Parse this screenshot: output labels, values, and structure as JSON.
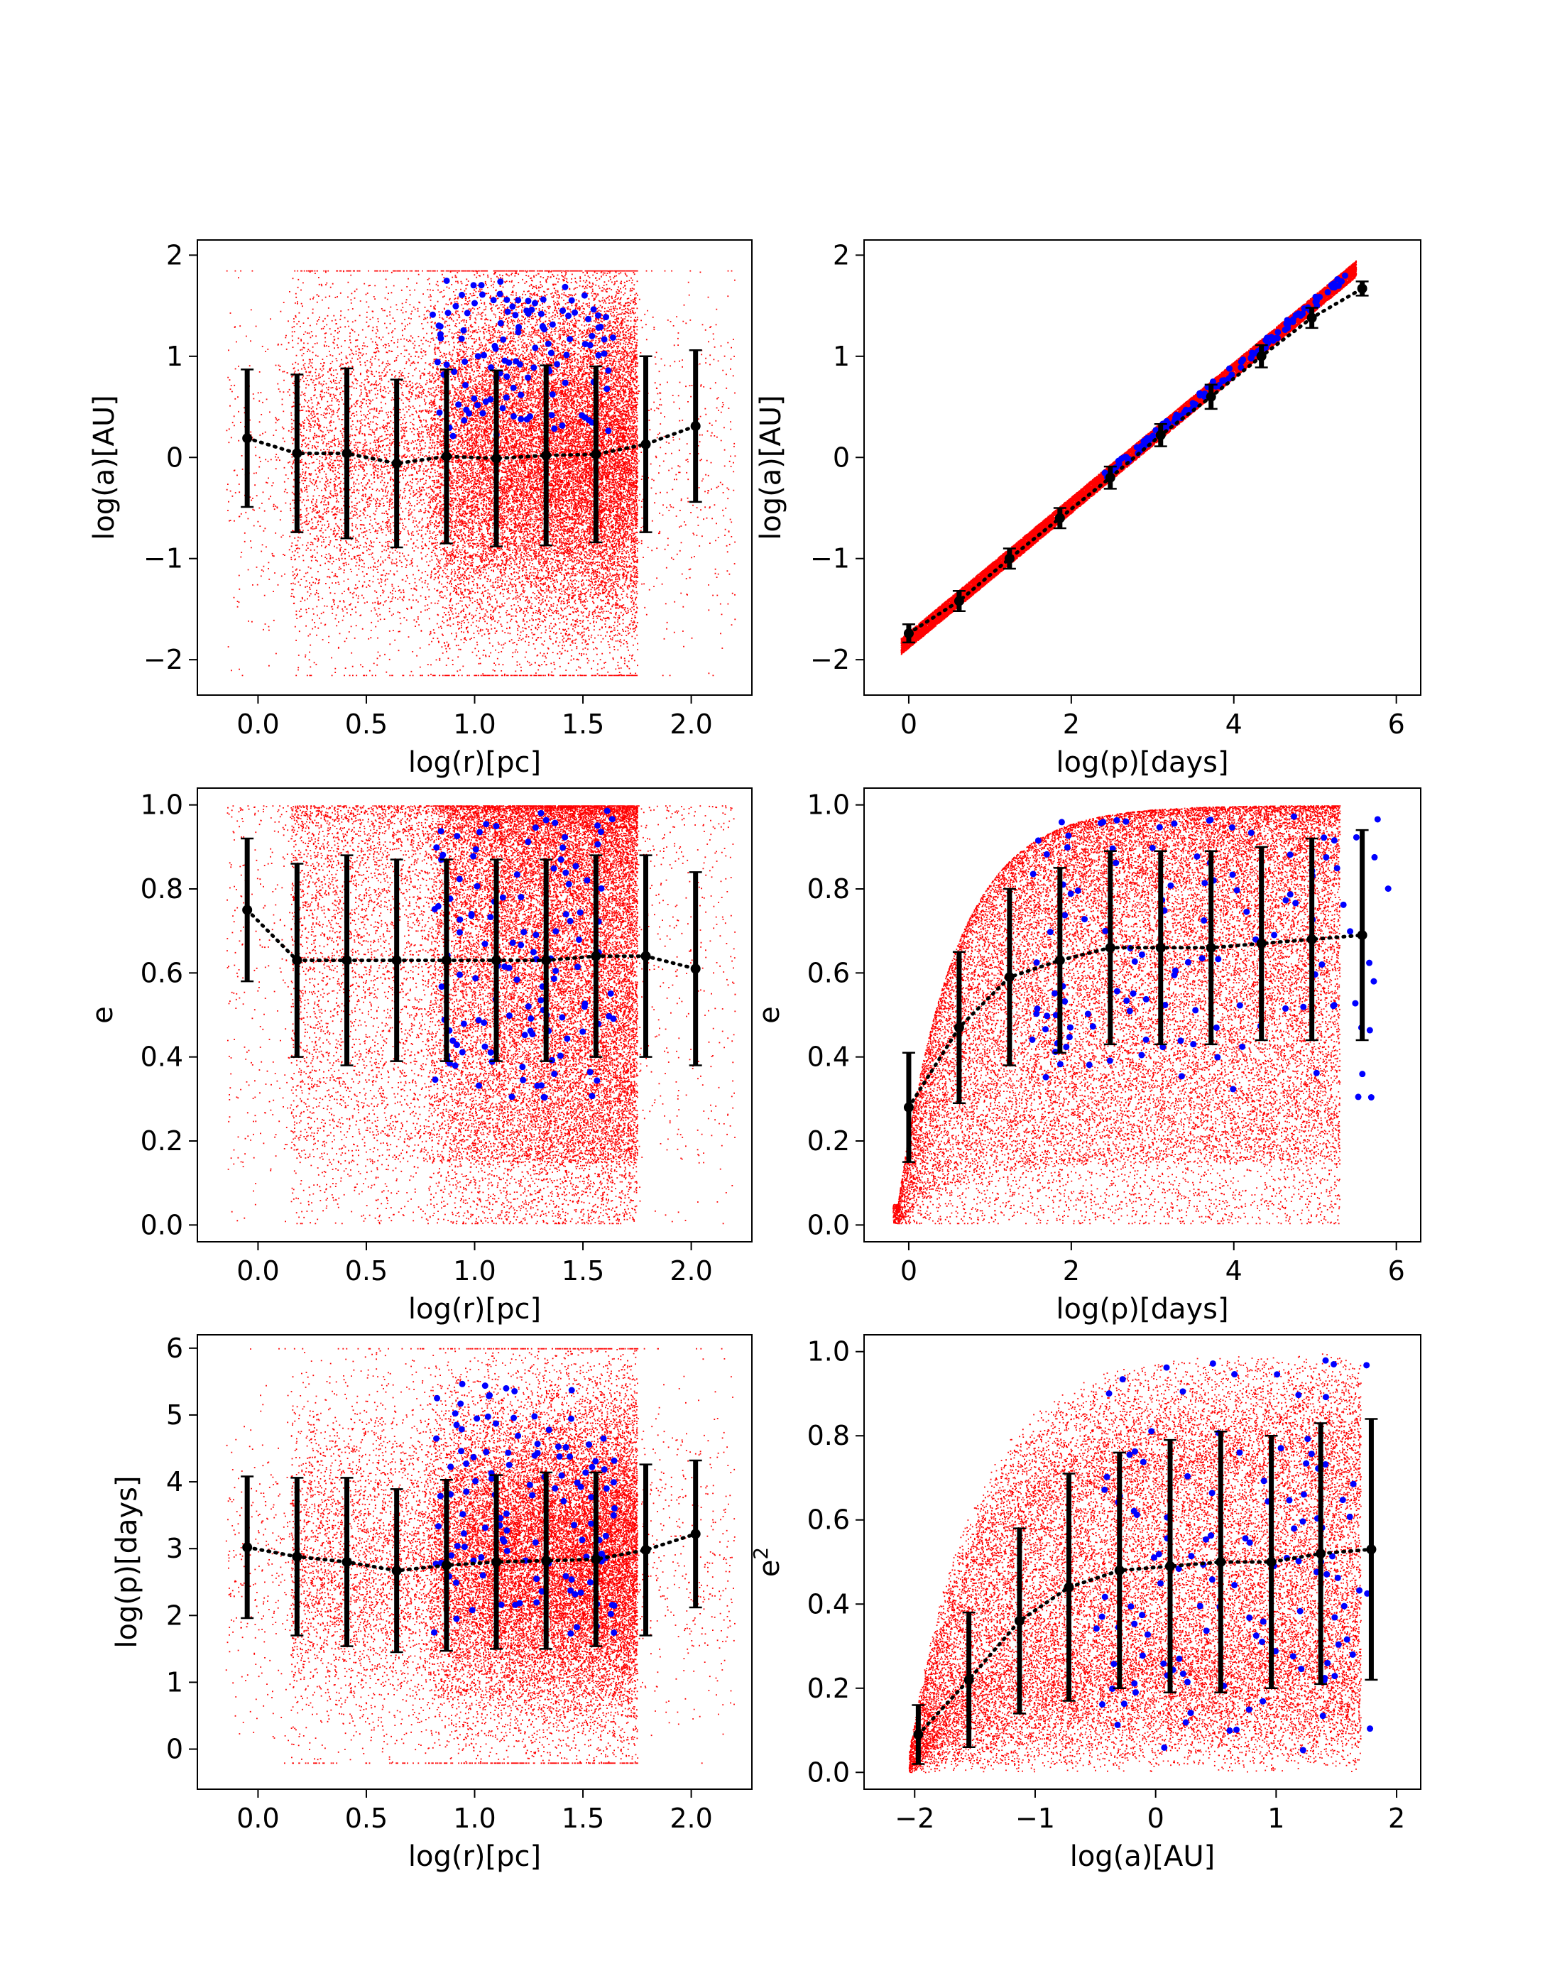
{
  "colors": {
    "background": "#ffffff",
    "scatter_sim": "#ff0000",
    "scatter_obs": "#0000ff",
    "binned": "#000000",
    "axes": "#000000"
  },
  "chart_data": [
    {
      "id": "a_vs_r",
      "type": "scatter",
      "xlabel": "log(r)[pc]",
      "ylabel": "log(a)[AU]",
      "xlim": [
        -0.28,
        2.28
      ],
      "ylim": [
        -2.35,
        2.15
      ],
      "xticks": [
        0.0,
        0.5,
        1.0,
        1.5,
        2.0
      ],
      "xtick_labels": [
        "0.0",
        "0.5",
        "1.0",
        "1.5",
        "2.0"
      ],
      "yticks": [
        -2,
        -1,
        0,
        1,
        2
      ],
      "ytick_labels": [
        "−2",
        "−1",
        "0",
        "1",
        "2"
      ],
      "binned": {
        "x": [
          -0.05,
          0.18,
          0.41,
          0.64,
          0.87,
          1.1,
          1.33,
          1.56,
          1.79,
          2.02
        ],
        "y": [
          0.19,
          0.04,
          0.04,
          -0.06,
          0.01,
          -0.01,
          0.02,
          0.03,
          0.13,
          0.31
        ],
        "yerr": [
          0.68,
          0.78,
          0.84,
          0.83,
          0.86,
          0.87,
          0.89,
          0.87,
          0.87,
          0.75
        ]
      }
    },
    {
      "id": "a_vs_p",
      "type": "scatter",
      "xlabel": "log(p)[days]",
      "ylabel": "log(a)[AU]",
      "xlim": [
        -0.55,
        6.3
      ],
      "ylim": [
        -2.35,
        2.15
      ],
      "xticks": [
        0,
        2,
        4,
        6
      ],
      "xtick_labels": [
        "0",
        "2",
        "4",
        "6"
      ],
      "yticks": [
        -2,
        -1,
        0,
        1,
        2
      ],
      "ytick_labels": [
        "−2",
        "−1",
        "0",
        "1",
        "2"
      ],
      "binned": {
        "x": [
          0.0,
          0.62,
          1.24,
          1.86,
          2.48,
          3.1,
          3.72,
          4.34,
          4.96,
          5.58
        ],
        "y": [
          -1.74,
          -1.42,
          -1.0,
          -0.6,
          -0.2,
          0.22,
          0.6,
          1.0,
          1.38,
          1.67
        ],
        "yerr": [
          0.09,
          0.1,
          0.1,
          0.1,
          0.11,
          0.11,
          0.12,
          0.11,
          0.1,
          0.07
        ]
      }
    },
    {
      "id": "e_vs_r",
      "type": "scatter",
      "xlabel": "log(r)[pc]",
      "ylabel": "e",
      "xlim": [
        -0.28,
        2.28
      ],
      "ylim": [
        -0.04,
        1.04
      ],
      "xticks": [
        0.0,
        0.5,
        1.0,
        1.5,
        2.0
      ],
      "xtick_labels": [
        "0.0",
        "0.5",
        "1.0",
        "1.5",
        "2.0"
      ],
      "yticks": [
        0.0,
        0.2,
        0.4,
        0.6,
        0.8,
        1.0
      ],
      "ytick_labels": [
        "0.0",
        "0.2",
        "0.4",
        "0.6",
        "0.8",
        "1.0"
      ],
      "binned": {
        "x": [
          -0.05,
          0.18,
          0.41,
          0.64,
          0.87,
          1.1,
          1.33,
          1.56,
          1.79,
          2.02
        ],
        "y": [
          0.75,
          0.63,
          0.63,
          0.63,
          0.63,
          0.63,
          0.63,
          0.64,
          0.64,
          0.61
        ],
        "yerr": [
          0.17,
          0.23,
          0.25,
          0.24,
          0.24,
          0.24,
          0.24,
          0.24,
          0.24,
          0.23
        ]
      }
    },
    {
      "id": "e_vs_p",
      "type": "scatter",
      "xlabel": "log(p)[days]",
      "ylabel": "e",
      "xlim": [
        -0.55,
        6.3
      ],
      "ylim": [
        -0.04,
        1.04
      ],
      "xticks": [
        0,
        2,
        4,
        6
      ],
      "xtick_labels": [
        "0",
        "2",
        "4",
        "6"
      ],
      "yticks": [
        0.0,
        0.2,
        0.4,
        0.6,
        0.8,
        1.0
      ],
      "ytick_labels": [
        "0.0",
        "0.2",
        "0.4",
        "0.6",
        "0.8",
        "1.0"
      ],
      "binned": {
        "x": [
          0.0,
          0.62,
          1.24,
          1.86,
          2.48,
          3.1,
          3.72,
          4.34,
          4.96,
          5.58
        ],
        "y": [
          0.28,
          0.47,
          0.59,
          0.63,
          0.66,
          0.66,
          0.66,
          0.67,
          0.68,
          0.69
        ],
        "yerr": [
          0.13,
          0.18,
          0.21,
          0.22,
          0.23,
          0.23,
          0.23,
          0.23,
          0.24,
          0.25
        ]
      }
    },
    {
      "id": "p_vs_r",
      "type": "scatter",
      "xlabel": "log(r)[pc]",
      "ylabel": "log(p)[days]",
      "xlim": [
        -0.28,
        2.28
      ],
      "ylim": [
        -0.6,
        6.2
      ],
      "xticks": [
        0.0,
        0.5,
        1.0,
        1.5,
        2.0
      ],
      "xtick_labels": [
        "0.0",
        "0.5",
        "1.0",
        "1.5",
        "2.0"
      ],
      "yticks": [
        0,
        1,
        2,
        3,
        4,
        5,
        6
      ],
      "ytick_labels": [
        "0",
        "1",
        "2",
        "3",
        "4",
        "5",
        "6"
      ],
      "binned": {
        "x": [
          -0.05,
          0.18,
          0.41,
          0.64,
          0.87,
          1.1,
          1.33,
          1.56,
          1.79,
          2.02
        ],
        "y": [
          3.02,
          2.88,
          2.8,
          2.67,
          2.75,
          2.8,
          2.82,
          2.84,
          2.98,
          3.22
        ],
        "yerr": [
          1.06,
          1.18,
          1.26,
          1.22,
          1.28,
          1.3,
          1.32,
          1.3,
          1.28,
          1.1
        ]
      }
    },
    {
      "id": "e2_vs_a",
      "type": "scatter",
      "xlabel": "log(a)[AU]",
      "ylabel": "e2",
      "xlim": [
        -2.42,
        2.2
      ],
      "ylim": [
        -0.04,
        1.04
      ],
      "xticks": [
        -2,
        -1,
        0,
        1,
        2
      ],
      "xtick_labels": [
        "−2",
        "−1",
        "0",
        "1",
        "2"
      ],
      "yticks": [
        0.0,
        0.2,
        0.4,
        0.6,
        0.8,
        1.0
      ],
      "ytick_labels": [
        "0.0",
        "0.2",
        "0.4",
        "0.6",
        "0.8",
        "1.0"
      ],
      "binned": {
        "x": [
          -1.97,
          -1.55,
          -1.13,
          -0.72,
          -0.3,
          0.12,
          0.54,
          0.96,
          1.37,
          1.79
        ],
        "y": [
          0.09,
          0.22,
          0.36,
          0.44,
          0.48,
          0.49,
          0.5,
          0.5,
          0.52,
          0.53
        ],
        "yerr": [
          0.07,
          0.16,
          0.22,
          0.27,
          0.28,
          0.3,
          0.31,
          0.3,
          0.31,
          0.31
        ]
      }
    }
  ]
}
